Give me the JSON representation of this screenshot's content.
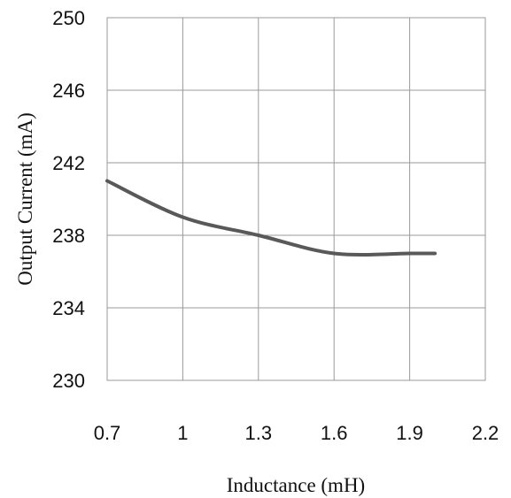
{
  "chart_data": {
    "type": "line",
    "xlabel": "Inductance (mH)",
    "ylabel": "Output Current (mA)",
    "xlim": [
      0.7,
      2.2
    ],
    "ylim": [
      230,
      250
    ],
    "x_ticks": [
      "0.7",
      "1",
      "1.3",
      "1.6",
      "1.9",
      "2.2"
    ],
    "y_ticks": [
      "230",
      "234",
      "238",
      "242",
      "246",
      "250"
    ],
    "grid": true,
    "legend": "none",
    "series": [
      {
        "color": "#595959",
        "x": [
          0.7,
          1.0,
          1.3,
          1.6,
          1.9,
          2.0
        ],
        "y": [
          241,
          239,
          238,
          237,
          237,
          237
        ]
      }
    ]
  }
}
